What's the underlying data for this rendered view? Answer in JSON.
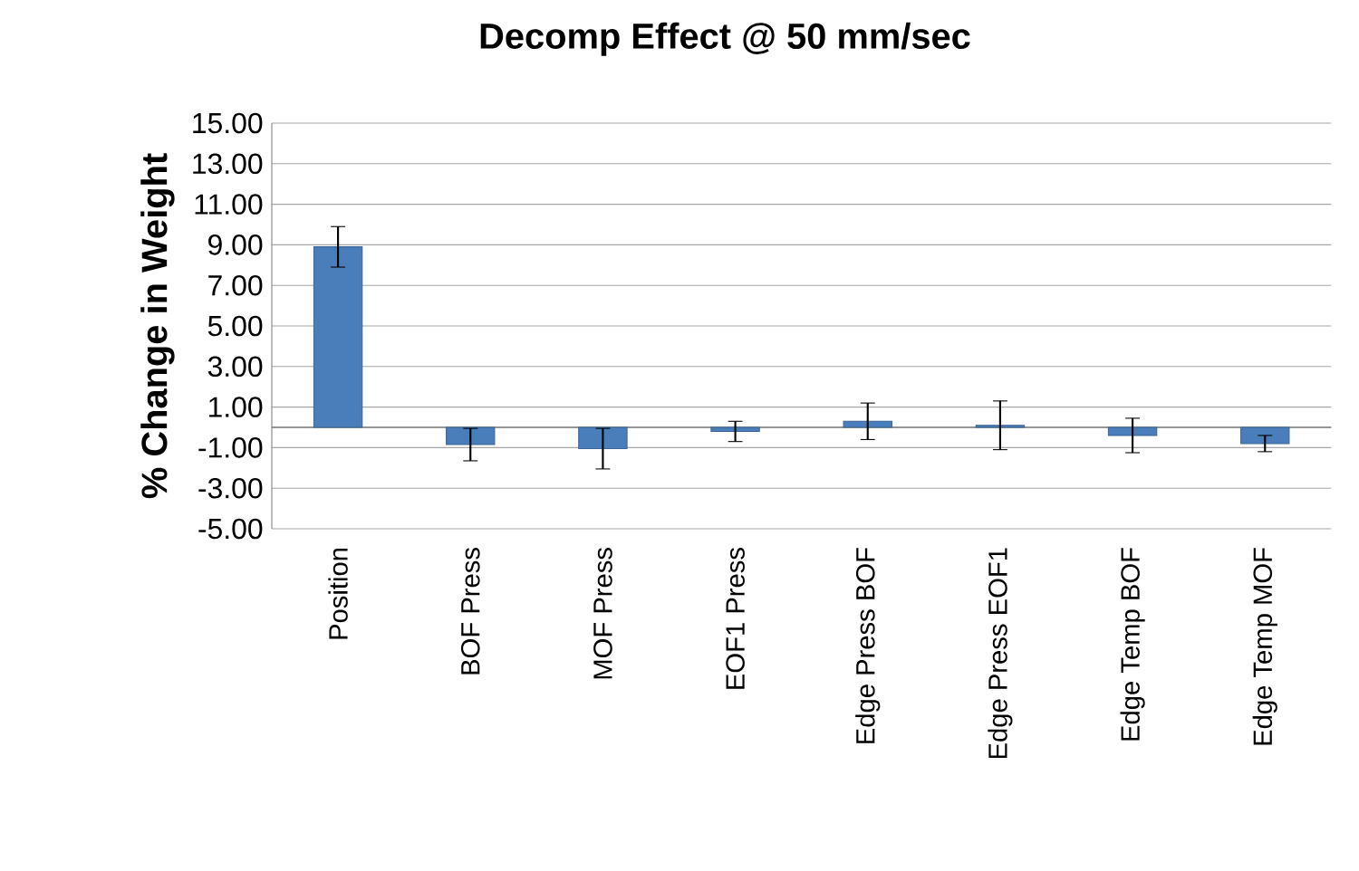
{
  "chart_data": {
    "type": "bar",
    "title": "Decomp Effect @ 50 mm/sec",
    "ylabel": "% Change in Weight",
    "categories": [
      "Position",
      "BOF Press",
      "MOF Press",
      "EOF1 Press",
      "Edge Press BOF",
      "Edge Press EOF1",
      "Edge Temp BOF",
      "Edge Temp MOF"
    ],
    "values": [
      8.9,
      -0.85,
      -1.05,
      -0.2,
      0.3,
      0.1,
      -0.4,
      -0.8
    ],
    "errors": [
      1.0,
      0.8,
      1.0,
      0.5,
      0.9,
      1.2,
      0.85,
      0.4
    ],
    "color": "#4a7ebb",
    "ylim": [
      -5,
      15
    ],
    "yticks": [
      {
        "value": 15,
        "label": "15.00"
      },
      {
        "value": 13,
        "label": "13.00"
      },
      {
        "value": 11,
        "label": "11.00"
      },
      {
        "value": 9,
        "label": "9.00"
      },
      {
        "value": 7,
        "label": "7.00"
      },
      {
        "value": 5,
        "label": "5.00"
      },
      {
        "value": 3,
        "label": "3.00"
      },
      {
        "value": 1,
        "label": "1.00"
      },
      {
        "value": -1,
        "label": "-1.00"
      },
      {
        "value": -3,
        "label": "-3.00"
      },
      {
        "value": -5,
        "label": "-5.00"
      }
    ],
    "grid": "y"
  }
}
